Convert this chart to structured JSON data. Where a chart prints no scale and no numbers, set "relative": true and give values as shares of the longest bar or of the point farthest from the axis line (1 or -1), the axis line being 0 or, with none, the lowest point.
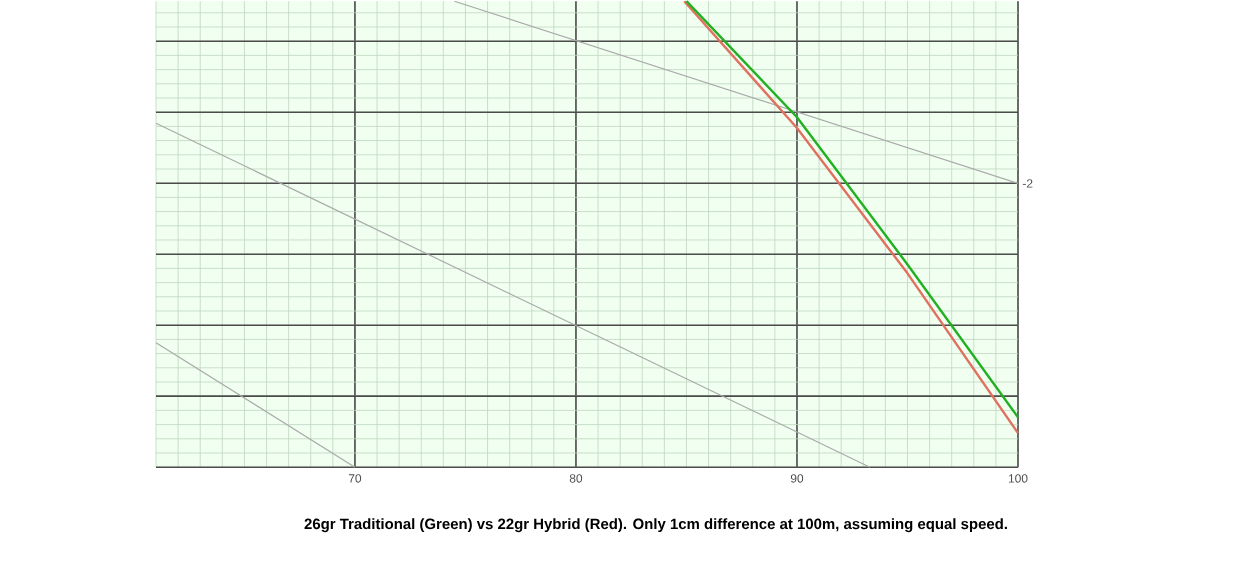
{
  "chart_data": {
    "type": "line",
    "title": "26gr Traditional (Green) vs 22gr Hybrid (Red). Only 1cm difference at 100m, assuming equal speed.",
    "relative": true,
    "xlim": [
      61,
      100
    ],
    "xticks": [
      70,
      80,
      90,
      100
    ],
    "grid": true,
    "tick_labels": "x",
    "annotations": [
      {
        "text": "-2",
        "x": 100,
        "y": 0.609
      }
    ],
    "series": [
      {
        "color": "#aaaaaa",
        "x": [
          74.5,
          100
        ],
        "values": [
          1,
          0.609
        ]
      },
      {
        "color": "#aaaaaa",
        "x": [
          61,
          93.3
        ],
        "values": [
          0.738,
          0
        ]
      },
      {
        "color": "#aaaaaa",
        "x": [
          61,
          70
        ],
        "values": [
          0.267,
          0
        ]
      },
      {
        "color": "#e07060",
        "x": [
          84.9,
          90,
          95,
          100
        ],
        "values": [
          1,
          0.728,
          0.416,
          0.073
        ]
      },
      {
        "color": "#22b022",
        "x": [
          85,
          90,
          95,
          100
        ],
        "values": [
          1,
          0.751,
          0.435,
          0.107
        ]
      }
    ]
  }
}
